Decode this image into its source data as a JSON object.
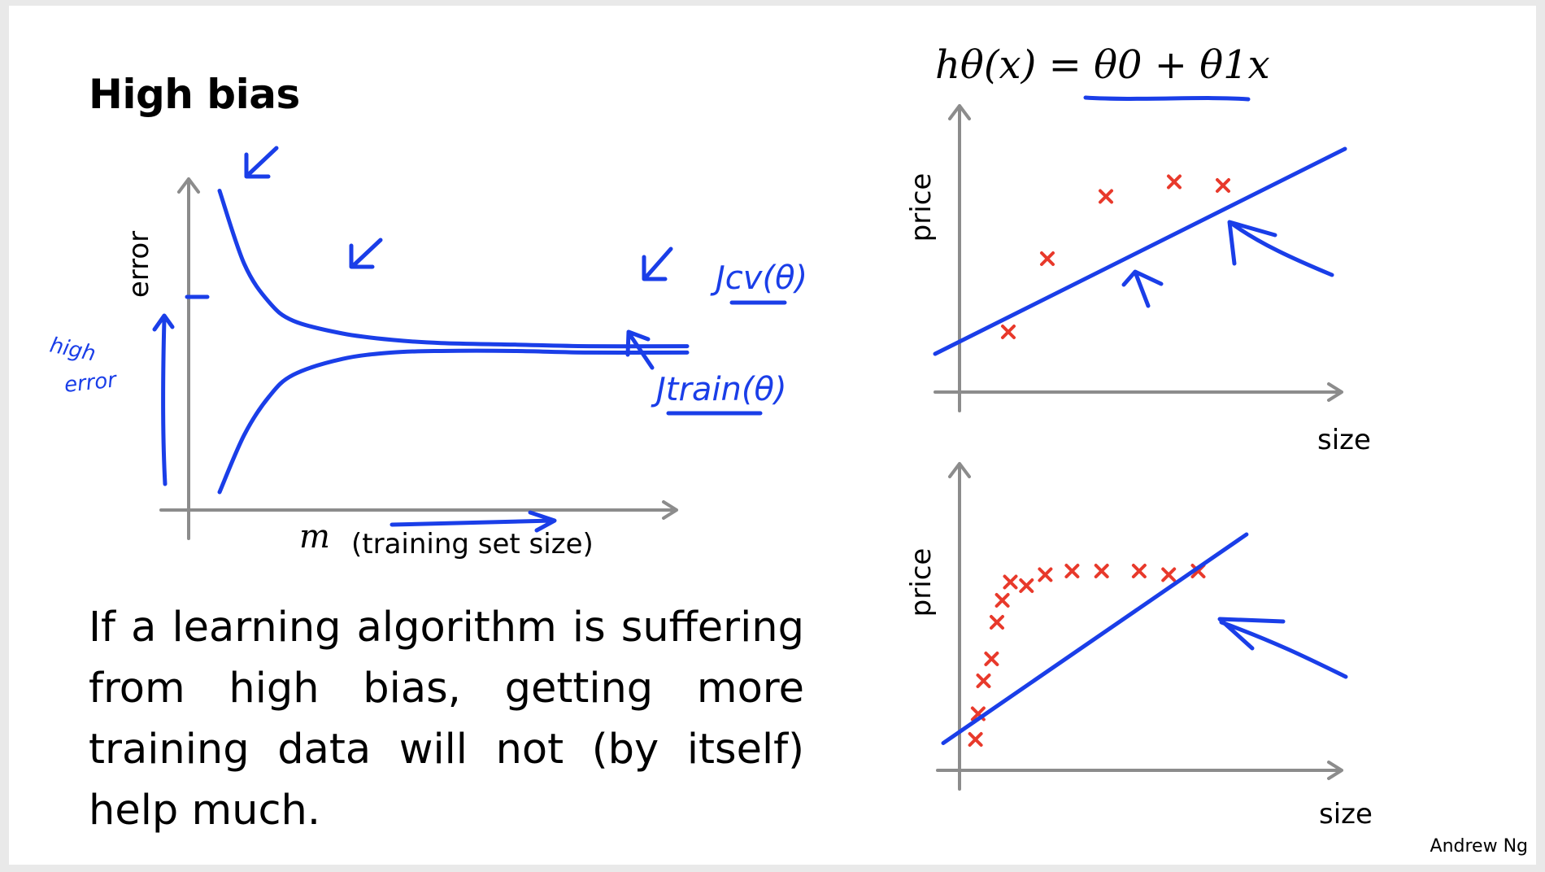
{
  "slide": {
    "title": "High bias",
    "body": "If a learning algorithm is suffering from high bias, getting more training data will not (by itself) help much.",
    "author": "Andrew Ng",
    "hypothesis": "hθ(x) = θ0 + θ1x",
    "colors": {
      "ink": "#1a3ee8",
      "points": "#e8392b",
      "axes": "#8c8c8c"
    }
  },
  "chart_data": [
    {
      "type": "line",
      "xlabel": "m (training set size)",
      "ylabel": "error",
      "annotations": [
        "high error",
        "Jcv(θ)",
        "Jtrain(θ)"
      ],
      "x": [
        1,
        2,
        3,
        4,
        6,
        8,
        10,
        13,
        16,
        20
      ],
      "series": [
        {
          "name": "Jcv(θ)",
          "values": [
            0.95,
            0.72,
            0.6,
            0.54,
            0.5,
            0.48,
            0.47,
            0.465,
            0.46,
            0.46
          ]
        },
        {
          "name": "Jtrain(θ)",
          "values": [
            0.0,
            0.18,
            0.3,
            0.37,
            0.42,
            0.44,
            0.445,
            0.445,
            0.44,
            0.44
          ]
        }
      ],
      "ylim": [
        0,
        1
      ],
      "grid": false
    },
    {
      "type": "scatter",
      "xlabel": "size",
      "ylabel": "price",
      "x": [
        1.5,
        2.3,
        3.5,
        4.9,
        5.9
      ],
      "y": [
        1.2,
        3.2,
        4.9,
        5.3,
        5.2
      ],
      "fit_line": {
        "x": [
          0,
          8.4
        ],
        "y": [
          0.6,
          6.2
        ]
      },
      "xlim": [
        0,
        9
      ],
      "ylim": [
        0,
        7
      ],
      "grid": false
    },
    {
      "type": "scatter",
      "xlabel": "size",
      "ylabel": "price",
      "x": [
        1.2,
        1.3,
        1.5,
        1.8,
        2.0,
        2.2,
        2.5,
        3.1,
        3.8,
        4.8,
        5.9,
        7.3,
        8.4,
        9.5
      ],
      "y": [
        0.4,
        1.1,
        2.0,
        2.6,
        3.6,
        4.2,
        4.7,
        4.6,
        4.9,
        5.0,
        5.0,
        5.0,
        4.9,
        5.0
      ],
      "fit_line": {
        "x": [
          0,
          11.3
        ],
        "y": [
          0.3,
          6.0
        ]
      },
      "xlim": [
        0,
        12.8
      ],
      "ylim": [
        0,
        7
      ],
      "grid": false
    }
  ]
}
